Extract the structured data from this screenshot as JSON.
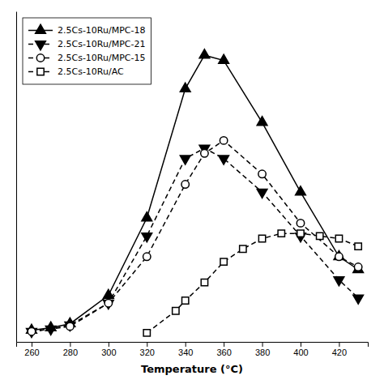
{
  "chart_data": {
    "type": "line",
    "x_label": "Temperature (°C)",
    "xlim": [
      252,
      435
    ],
    "xticks": [
      260,
      280,
      300,
      320,
      340,
      360,
      380,
      400,
      420
    ],
    "ylim": [
      -0.3,
      12.5
    ],
    "tick_labels": "x",
    "legend": "upper left",
    "series": [
      {
        "name": "2.5Cs-10Ru/MPC-18",
        "color": "#000000",
        "marker": "triangle-up",
        "line_style": "solid",
        "x": [
          260,
          270,
          280,
          300,
          320,
          340,
          350,
          360,
          380,
          400,
          420,
          430
        ],
        "values": [
          0.15,
          0.25,
          0.4,
          1.5,
          4.5,
          9.5,
          10.8,
          10.6,
          8.2,
          5.5,
          3.0,
          2.5
        ]
      },
      {
        "name": "2.5Cs-10Ru/MPC-21",
        "color": "#000000",
        "marker": "triangle-down",
        "line_style": "dashed",
        "x": [
          260,
          270,
          280,
          300,
          320,
          340,
          350,
          360,
          380,
          400,
          420,
          430
        ],
        "values": [
          0.1,
          0.2,
          0.35,
          1.2,
          3.8,
          6.8,
          7.2,
          6.8,
          5.5,
          3.8,
          2.1,
          1.4
        ]
      },
      {
        "name": "2.5Cs-10Ru/MPC-15",
        "color": "#000000",
        "marker": "circle-open",
        "line_style": "dashed",
        "x": [
          260,
          280,
          300,
          320,
          340,
          350,
          360,
          380,
          400,
          420,
          430
        ],
        "values": [
          0.1,
          0.3,
          1.2,
          3.0,
          5.8,
          7.0,
          7.5,
          6.2,
          4.3,
          3.0,
          2.6
        ]
      },
      {
        "name": "2.5Cs-10Ru/AC",
        "color": "#000000",
        "marker": "square-open",
        "line_style": "dashed",
        "x": [
          320,
          335,
          340,
          350,
          360,
          370,
          380,
          390,
          400,
          410,
          420,
          430
        ],
        "values": [
          0.05,
          0.9,
          1.3,
          2.0,
          2.8,
          3.3,
          3.7,
          3.9,
          3.9,
          3.8,
          3.7,
          3.4
        ]
      }
    ]
  }
}
